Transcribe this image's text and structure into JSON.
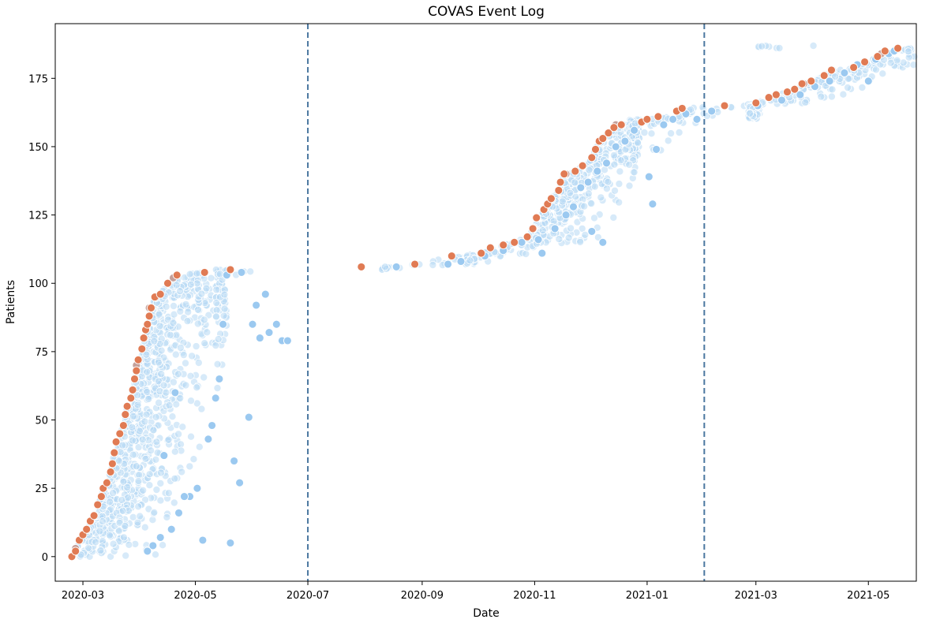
{
  "chart_data": {
    "type": "scatter",
    "title": "COVAS Event Log",
    "xlabel": "Date",
    "ylabel": "Patients",
    "x_axis": "date",
    "xlim": [
      "2020-02-15",
      "2021-05-27"
    ],
    "ylim": [
      -9,
      195
    ],
    "xticks": [
      "2020-03",
      "2020-05",
      "2020-07",
      "2020-09",
      "2020-11",
      "2021-01",
      "2021-03",
      "2021-05"
    ],
    "yticks": [
      0,
      25,
      50,
      75,
      100,
      125,
      150,
      175
    ],
    "grid": false,
    "vertical_lines": [
      {
        "x": "2020-07-01",
        "style": "dashed",
        "color": "#4a77a0"
      },
      {
        "x": "2021-02-01",
        "style": "dashed",
        "color": "#4a77a0"
      }
    ],
    "colors": {
      "admission": "#e07b54",
      "event": "#b7d9f4",
      "event_strong": "#9bc9f0",
      "transition": "#c4a09a"
    },
    "series": [
      {
        "color": "#e07b54",
        "points": [
          [
            "2020-02-24",
            0
          ],
          [
            "2020-02-26",
            2
          ],
          [
            "2020-02-28",
            6
          ],
          [
            "2020-03-01",
            8
          ],
          [
            "2020-03-03",
            10
          ],
          [
            "2020-03-05",
            13
          ],
          [
            "2020-03-07",
            15
          ],
          [
            "2020-03-09",
            19
          ],
          [
            "2020-03-11",
            22
          ],
          [
            "2020-03-12",
            25
          ],
          [
            "2020-03-14",
            27
          ],
          [
            "2020-03-16",
            31
          ],
          [
            "2020-03-17",
            34
          ],
          [
            "2020-03-18",
            38
          ],
          [
            "2020-03-19",
            42
          ],
          [
            "2020-03-21",
            45
          ],
          [
            "2020-03-23",
            48
          ],
          [
            "2020-03-24",
            52
          ],
          [
            "2020-03-25",
            55
          ],
          [
            "2020-03-27",
            58
          ],
          [
            "2020-03-28",
            61
          ],
          [
            "2020-03-29",
            65
          ],
          [
            "2020-03-30",
            68
          ],
          [
            "2020-03-31",
            72
          ],
          [
            "2020-04-02",
            76
          ],
          [
            "2020-04-03",
            80
          ],
          [
            "2020-04-04",
            83
          ],
          [
            "2020-04-05",
            85
          ],
          [
            "2020-04-06",
            88
          ],
          [
            "2020-04-07",
            91
          ],
          [
            "2020-04-09",
            95
          ],
          [
            "2020-04-12",
            96
          ],
          [
            "2020-04-16",
            100
          ],
          [
            "2020-04-21",
            103
          ],
          [
            "2020-05-06",
            104
          ],
          [
            "2020-05-20",
            105
          ],
          [
            "2020-07-30",
            106
          ],
          [
            "2020-08-28",
            107
          ],
          [
            "2020-09-17",
            110
          ],
          [
            "2020-10-03",
            111
          ],
          [
            "2020-10-08",
            113
          ],
          [
            "2020-10-15",
            114
          ],
          [
            "2020-10-21",
            115
          ],
          [
            "2020-10-28",
            117
          ],
          [
            "2020-10-31",
            120
          ],
          [
            "2020-11-02",
            124
          ],
          [
            "2020-11-06",
            127
          ],
          [
            "2020-11-08",
            129
          ],
          [
            "2020-11-10",
            131
          ],
          [
            "2020-11-14",
            134
          ],
          [
            "2020-11-15",
            137
          ],
          [
            "2020-11-17",
            140
          ],
          [
            "2020-11-23",
            141
          ],
          [
            "2020-11-27",
            143
          ],
          [
            "2020-12-02",
            146
          ],
          [
            "2020-12-04",
            149
          ],
          [
            "2020-12-06",
            152
          ],
          [
            "2020-12-08",
            153
          ],
          [
            "2020-12-11",
            155
          ],
          [
            "2020-12-14",
            157
          ],
          [
            "2020-12-18",
            158
          ],
          [
            "2020-12-29",
            159
          ],
          [
            "2021-01-01",
            160
          ],
          [
            "2021-01-07",
            161
          ],
          [
            "2021-01-17",
            163
          ],
          [
            "2021-01-20",
            164
          ],
          [
            "2021-02-12",
            165
          ],
          [
            "2021-03-01",
            166
          ],
          [
            "2021-03-08",
            168
          ],
          [
            "2021-03-12",
            169
          ],
          [
            "2021-03-18",
            170
          ],
          [
            "2021-03-22",
            171
          ],
          [
            "2021-03-26",
            173
          ],
          [
            "2021-03-31",
            174
          ],
          [
            "2021-04-07",
            176
          ],
          [
            "2021-04-11",
            178
          ],
          [
            "2021-04-23",
            179
          ],
          [
            "2021-04-29",
            181
          ],
          [
            "2021-05-06",
            183
          ],
          [
            "2021-05-10",
            185
          ],
          [
            "2021-05-17",
            186
          ]
        ]
      },
      {
        "color": "#9bc9f0",
        "points": [
          [
            "2020-04-05",
            2
          ],
          [
            "2020-04-08",
            4
          ],
          [
            "2020-04-12",
            7
          ],
          [
            "2020-04-18",
            10
          ],
          [
            "2020-04-22",
            16
          ],
          [
            "2020-04-28",
            22
          ],
          [
            "2020-05-02",
            25
          ],
          [
            "2020-05-05",
            6
          ],
          [
            "2020-05-08",
            43
          ],
          [
            "2020-05-10",
            48
          ],
          [
            "2020-05-12",
            58
          ],
          [
            "2020-05-14",
            65
          ],
          [
            "2020-05-20",
            5
          ],
          [
            "2020-05-22",
            35
          ],
          [
            "2020-05-25",
            27
          ],
          [
            "2020-05-30",
            51
          ],
          [
            "2020-06-01",
            85
          ],
          [
            "2020-06-03",
            92
          ],
          [
            "2020-06-05",
            80
          ],
          [
            "2020-06-08",
            96
          ],
          [
            "2020-06-10",
            82
          ],
          [
            "2020-06-14",
            85
          ],
          [
            "2020-06-17",
            79
          ],
          [
            "2020-06-20",
            79
          ],
          [
            "2020-04-20",
            60
          ],
          [
            "2020-04-14",
            37
          ],
          [
            "2020-04-25",
            22
          ],
          [
            "2020-05-16",
            85
          ],
          [
            "2020-05-18",
            103
          ],
          [
            "2020-05-26",
            104
          ],
          [
            "2020-08-18",
            106
          ],
          [
            "2020-09-15",
            107
          ],
          [
            "2020-09-22",
            108
          ],
          [
            "2020-10-05",
            110
          ],
          [
            "2020-10-15",
            112
          ],
          [
            "2020-10-25",
            115
          ],
          [
            "2020-11-03",
            116
          ],
          [
            "2020-11-05",
            111
          ],
          [
            "2020-11-12",
            120
          ],
          [
            "2020-11-18",
            125
          ],
          [
            "2020-11-22",
            128
          ],
          [
            "2020-11-26",
            135
          ],
          [
            "2020-11-30",
            137
          ],
          [
            "2020-12-02",
            119
          ],
          [
            "2020-12-05",
            141
          ],
          [
            "2020-12-08",
            115
          ],
          [
            "2020-12-10",
            144
          ],
          [
            "2020-12-15",
            150
          ],
          [
            "2020-12-20",
            152
          ],
          [
            "2020-12-25",
            156
          ],
          [
            "2021-01-02",
            139
          ],
          [
            "2021-01-04",
            129
          ],
          [
            "2021-01-06",
            149
          ],
          [
            "2021-01-10",
            158
          ],
          [
            "2021-01-15",
            160
          ],
          [
            "2021-01-22",
            162
          ],
          [
            "2021-01-28",
            160
          ],
          [
            "2021-02-05",
            163
          ],
          [
            "2021-03-02",
            165
          ],
          [
            "2021-03-15",
            167
          ],
          [
            "2021-03-25",
            169
          ],
          [
            "2021-04-02",
            172
          ],
          [
            "2021-04-10",
            174
          ],
          [
            "2021-04-18",
            177
          ],
          [
            "2021-04-25",
            180
          ],
          [
            "2021-05-01",
            174
          ],
          [
            "2021-05-05",
            182
          ],
          [
            "2021-05-12",
            184
          ],
          [
            "2021-05-15",
            185
          ]
        ]
      },
      {
        "color": "#c4a09a",
        "points": [
          [
            "2020-02-26",
            3
          ],
          [
            "2020-03-30",
            70
          ],
          [
            "2020-04-06",
            91
          ],
          [
            "2020-04-19",
            102
          ],
          [
            "2020-11-10",
            131
          ],
          [
            "2020-11-18",
            140
          ],
          [
            "2020-12-15",
            158
          ],
          [
            "2021-03-27",
            173
          ],
          [
            "2021-05-08",
            184
          ]
        ]
      },
      {
        "color": "#b7d9f4",
        "bands": [
          {
            "start": "2020-02-27",
            "end": "2020-05-18",
            "ymin": 0,
            "ymax": 105,
            "lead_days": 52,
            "count": 900
          },
          {
            "start": "2020-05-12",
            "end": "2020-06-22",
            "ymin": 77,
            "ymax": 105,
            "lead_days": 60,
            "count": 40
          },
          {
            "start": "2020-08-10",
            "end": "2020-09-30",
            "ymin": 105,
            "ymax": 110,
            "lead_days": 60,
            "count": 30
          },
          {
            "start": "2020-09-25",
            "end": "2020-12-28",
            "ymin": 107,
            "ymax": 160,
            "lead_days": 45,
            "count": 480
          },
          {
            "start": "2020-12-20",
            "end": "2021-02-28",
            "ymin": 148,
            "ymax": 166,
            "lead_days": 45,
            "count": 90
          },
          {
            "start": "2021-02-25",
            "end": "2021-05-27",
            "ymin": 160,
            "ymax": 187,
            "lead_days": 40,
            "count": 220
          }
        ]
      }
    ]
  }
}
